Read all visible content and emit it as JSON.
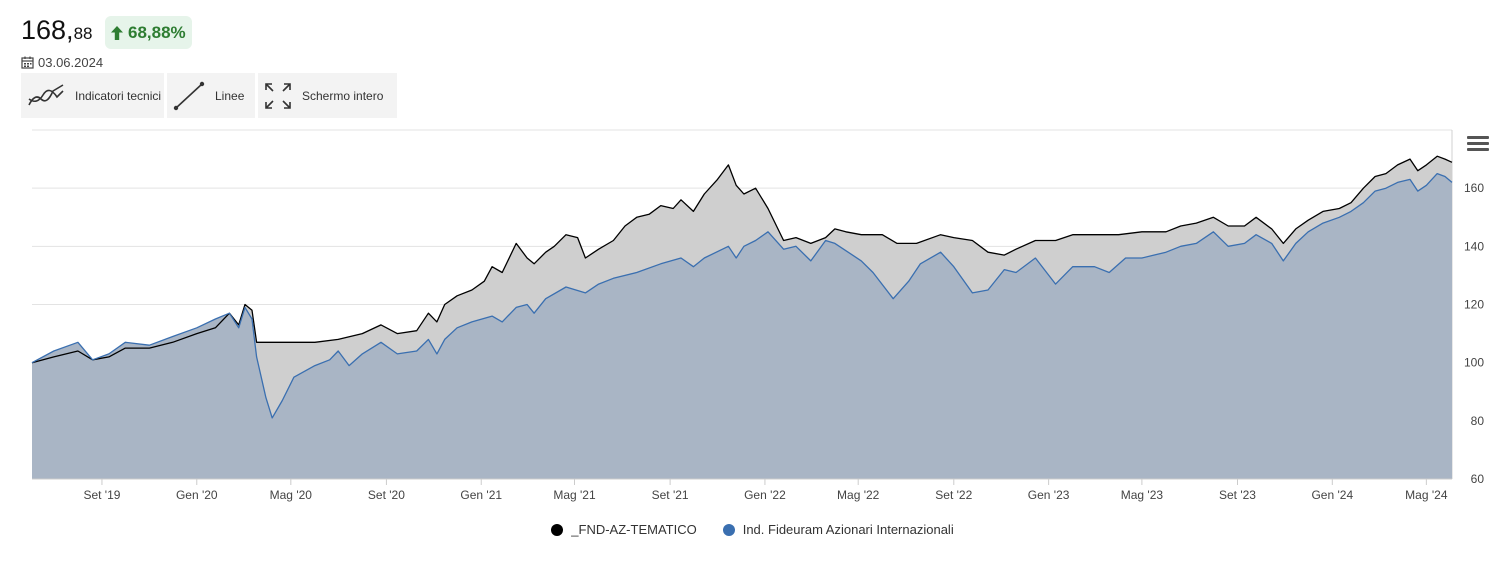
{
  "header": {
    "price_int": "168,",
    "price_dec": "88",
    "change": "68,88%",
    "date": "03.06.2024"
  },
  "toolbar": {
    "indicators_label": "Indicatori tecnici",
    "lines_label": "Linee",
    "fullscreen_label": "Schermo intero"
  },
  "colors": {
    "series_fund": "#000000",
    "series_index": "#3a6fb0",
    "fund_area": "#cfcfcf",
    "index_area": "#a9b5c5",
    "positive": "#2e7d32"
  },
  "icons": [
    "calendar-icon",
    "arrow-up-icon",
    "indicators-icon",
    "line-icon",
    "fullscreen-icon",
    "menu-icon"
  ],
  "chart_data": {
    "type": "area",
    "title": "",
    "xlabel": "",
    "ylabel": "",
    "ylim": [
      60,
      180
    ],
    "yticks": [
      60,
      80,
      100,
      120,
      140,
      160
    ],
    "y_axis_position": "right",
    "grid": true,
    "legend_position": "bottom-center",
    "xlim": [
      "2019-06-03",
      "2024-06-03"
    ],
    "xticks": [
      {
        "date": "2019-09-01",
        "label": "Set '19"
      },
      {
        "date": "2020-01-01",
        "label": "Gen '20"
      },
      {
        "date": "2020-05-01",
        "label": "Mag '20"
      },
      {
        "date": "2020-09-01",
        "label": "Set '20"
      },
      {
        "date": "2021-01-01",
        "label": "Gen '21"
      },
      {
        "date": "2021-05-01",
        "label": "Mag '21"
      },
      {
        "date": "2021-09-01",
        "label": "Set '21"
      },
      {
        "date": "2022-01-01",
        "label": "Gen '22"
      },
      {
        "date": "2022-05-01",
        "label": "Mag '22"
      },
      {
        "date": "2022-09-01",
        "label": "Set '22"
      },
      {
        "date": "2023-01-01",
        "label": "Gen '23"
      },
      {
        "date": "2023-05-01",
        "label": "Mag '23"
      },
      {
        "date": "2023-09-01",
        "label": "Set '23"
      },
      {
        "date": "2024-01-01",
        "label": "Gen '24"
      },
      {
        "date": "2024-05-01",
        "label": "Mag '24"
      }
    ],
    "series": [
      {
        "name": "_FND-AZ-TEMATICO",
        "points": [
          [
            "2019-06-03",
            100
          ],
          [
            "2019-07-01",
            102
          ],
          [
            "2019-08-01",
            104
          ],
          [
            "2019-08-20",
            101
          ],
          [
            "2019-09-10",
            102
          ],
          [
            "2019-10-01",
            105
          ],
          [
            "2019-11-01",
            105
          ],
          [
            "2019-12-01",
            107
          ],
          [
            "2020-01-01",
            110
          ],
          [
            "2020-01-25",
            112
          ],
          [
            "2020-02-12",
            117
          ],
          [
            "2020-02-24",
            113
          ],
          [
            "2020-03-03",
            120
          ],
          [
            "2020-03-12",
            118
          ],
          [
            "2020-03-18",
            107
          ],
          [
            "2020-05-01",
            107
          ],
          [
            "2020-06-01",
            107
          ],
          [
            "2020-07-01",
            108
          ],
          [
            "2020-08-01",
            110
          ],
          [
            "2020-08-25",
            113
          ],
          [
            "2020-09-15",
            110
          ],
          [
            "2020-10-10",
            111
          ],
          [
            "2020-10-25",
            117
          ],
          [
            "2020-11-05",
            114
          ],
          [
            "2020-11-15",
            120
          ],
          [
            "2020-12-01",
            123
          ],
          [
            "2020-12-20",
            125
          ],
          [
            "2021-01-05",
            128
          ],
          [
            "2021-01-15",
            133
          ],
          [
            "2021-01-28",
            131
          ],
          [
            "2021-02-15",
            141
          ],
          [
            "2021-03-01",
            136
          ],
          [
            "2021-03-10",
            134
          ],
          [
            "2021-03-25",
            138
          ],
          [
            "2021-04-05",
            140
          ],
          [
            "2021-04-20",
            144
          ],
          [
            "2021-05-05",
            143
          ],
          [
            "2021-05-15",
            136
          ],
          [
            "2021-06-01",
            139
          ],
          [
            "2021-06-20",
            142
          ],
          [
            "2021-07-05",
            147
          ],
          [
            "2021-07-20",
            150
          ],
          [
            "2021-08-05",
            151
          ],
          [
            "2021-08-20",
            154
          ],
          [
            "2021-09-05",
            153
          ],
          [
            "2021-09-15",
            156
          ],
          [
            "2021-10-01",
            152
          ],
          [
            "2021-10-15",
            158
          ],
          [
            "2021-11-01",
            163
          ],
          [
            "2021-11-15",
            168
          ],
          [
            "2021-11-25",
            161
          ],
          [
            "2021-12-05",
            158
          ],
          [
            "2021-12-20",
            160
          ],
          [
            "2022-01-05",
            153
          ],
          [
            "2022-01-25",
            142
          ],
          [
            "2022-02-10",
            143
          ],
          [
            "2022-03-01",
            141
          ],
          [
            "2022-03-20",
            143
          ],
          [
            "2022-04-01",
            146
          ],
          [
            "2022-04-15",
            145
          ],
          [
            "2022-05-05",
            144
          ],
          [
            "2022-06-01",
            144
          ],
          [
            "2022-06-20",
            141
          ],
          [
            "2022-07-15",
            141
          ],
          [
            "2022-08-15",
            144
          ],
          [
            "2022-09-01",
            143
          ],
          [
            "2022-09-25",
            142
          ],
          [
            "2022-10-15",
            138
          ],
          [
            "2022-11-05",
            137
          ],
          [
            "2022-11-20",
            139
          ],
          [
            "2022-12-15",
            142
          ],
          [
            "2023-01-10",
            142
          ],
          [
            "2023-02-01",
            144
          ],
          [
            "2023-03-01",
            144
          ],
          [
            "2023-04-01",
            144
          ],
          [
            "2023-05-01",
            145
          ],
          [
            "2023-06-01",
            145
          ],
          [
            "2023-06-20",
            147
          ],
          [
            "2023-07-10",
            148
          ],
          [
            "2023-08-01",
            150
          ],
          [
            "2023-08-20",
            147
          ],
          [
            "2023-09-10",
            147
          ],
          [
            "2023-09-25",
            150
          ],
          [
            "2023-10-15",
            146
          ],
          [
            "2023-10-30",
            141
          ],
          [
            "2023-11-15",
            146
          ],
          [
            "2023-12-01",
            149
          ],
          [
            "2023-12-20",
            152
          ],
          [
            "2024-01-10",
            153
          ],
          [
            "2024-01-25",
            155
          ],
          [
            "2024-02-10",
            160
          ],
          [
            "2024-02-25",
            164
          ],
          [
            "2024-03-10",
            165
          ],
          [
            "2024-03-25",
            168
          ],
          [
            "2024-04-10",
            170
          ],
          [
            "2024-04-20",
            166
          ],
          [
            "2024-05-01",
            168
          ],
          [
            "2024-05-15",
            171
          ],
          [
            "2024-05-25",
            170
          ],
          [
            "2024-06-03",
            168.88
          ]
        ]
      },
      {
        "name": "Ind. Fideuram Azionari Internazionali",
        "points": [
          [
            "2019-06-03",
            100
          ],
          [
            "2019-07-01",
            104
          ],
          [
            "2019-08-01",
            107
          ],
          [
            "2019-08-20",
            101
          ],
          [
            "2019-09-10",
            103
          ],
          [
            "2019-10-01",
            107
          ],
          [
            "2019-11-01",
            106
          ],
          [
            "2019-12-01",
            109
          ],
          [
            "2020-01-01",
            112
          ],
          [
            "2020-01-25",
            115
          ],
          [
            "2020-02-12",
            117
          ],
          [
            "2020-02-24",
            112
          ],
          [
            "2020-03-03",
            119
          ],
          [
            "2020-03-12",
            115
          ],
          [
            "2020-03-18",
            102
          ],
          [
            "2020-03-30",
            88
          ],
          [
            "2020-04-07",
            81
          ],
          [
            "2020-04-20",
            87
          ],
          [
            "2020-05-05",
            95
          ],
          [
            "2020-06-01",
            99
          ],
          [
            "2020-06-20",
            101
          ],
          [
            "2020-07-01",
            104
          ],
          [
            "2020-07-15",
            99
          ],
          [
            "2020-08-01",
            103
          ],
          [
            "2020-08-25",
            107
          ],
          [
            "2020-09-15",
            103
          ],
          [
            "2020-10-10",
            104
          ],
          [
            "2020-10-25",
            108
          ],
          [
            "2020-11-05",
            103
          ],
          [
            "2020-11-15",
            108
          ],
          [
            "2020-12-01",
            112
          ],
          [
            "2020-12-20",
            114
          ],
          [
            "2021-01-15",
            116
          ],
          [
            "2021-01-28",
            114
          ],
          [
            "2021-02-15",
            119
          ],
          [
            "2021-03-01",
            120
          ],
          [
            "2021-03-10",
            117
          ],
          [
            "2021-03-25",
            122
          ],
          [
            "2021-04-20",
            126
          ],
          [
            "2021-05-15",
            124
          ],
          [
            "2021-06-01",
            127
          ],
          [
            "2021-06-20",
            129
          ],
          [
            "2021-07-20",
            131
          ],
          [
            "2021-08-20",
            134
          ],
          [
            "2021-09-15",
            136
          ],
          [
            "2021-10-01",
            133
          ],
          [
            "2021-10-15",
            136
          ],
          [
            "2021-11-15",
            140
          ],
          [
            "2021-11-25",
            136
          ],
          [
            "2021-12-05",
            140
          ],
          [
            "2021-12-20",
            142
          ],
          [
            "2022-01-05",
            145
          ],
          [
            "2022-01-25",
            139
          ],
          [
            "2022-02-10",
            140
          ],
          [
            "2022-03-01",
            135
          ],
          [
            "2022-03-20",
            142
          ],
          [
            "2022-04-01",
            141
          ],
          [
            "2022-05-05",
            135
          ],
          [
            "2022-05-20",
            131
          ],
          [
            "2022-06-15",
            122
          ],
          [
            "2022-07-05",
            128
          ],
          [
            "2022-07-20",
            134
          ],
          [
            "2022-08-15",
            138
          ],
          [
            "2022-09-01",
            133
          ],
          [
            "2022-09-25",
            124
          ],
          [
            "2022-10-15",
            125
          ],
          [
            "2022-11-05",
            132
          ],
          [
            "2022-11-20",
            131
          ],
          [
            "2022-12-15",
            136
          ],
          [
            "2023-01-10",
            127
          ],
          [
            "2023-02-01",
            133
          ],
          [
            "2023-03-01",
            133
          ],
          [
            "2023-03-20",
            131
          ],
          [
            "2023-04-10",
            136
          ],
          [
            "2023-05-01",
            136
          ],
          [
            "2023-06-01",
            138
          ],
          [
            "2023-06-20",
            140
          ],
          [
            "2023-07-10",
            141
          ],
          [
            "2023-08-01",
            145
          ],
          [
            "2023-08-20",
            140
          ],
          [
            "2023-09-10",
            141
          ],
          [
            "2023-09-25",
            144
          ],
          [
            "2023-10-15",
            141
          ],
          [
            "2023-10-30",
            135
          ],
          [
            "2023-11-15",
            141
          ],
          [
            "2023-12-01",
            145
          ],
          [
            "2023-12-20",
            148
          ],
          [
            "2024-01-10",
            150
          ],
          [
            "2024-01-25",
            152
          ],
          [
            "2024-02-10",
            155
          ],
          [
            "2024-02-25",
            159
          ],
          [
            "2024-03-10",
            160
          ],
          [
            "2024-03-25",
            162
          ],
          [
            "2024-04-10",
            163
          ],
          [
            "2024-04-20",
            159
          ],
          [
            "2024-05-01",
            161
          ],
          [
            "2024-05-15",
            165
          ],
          [
            "2024-05-25",
            164
          ],
          [
            "2024-06-03",
            162
          ]
        ]
      }
    ]
  }
}
